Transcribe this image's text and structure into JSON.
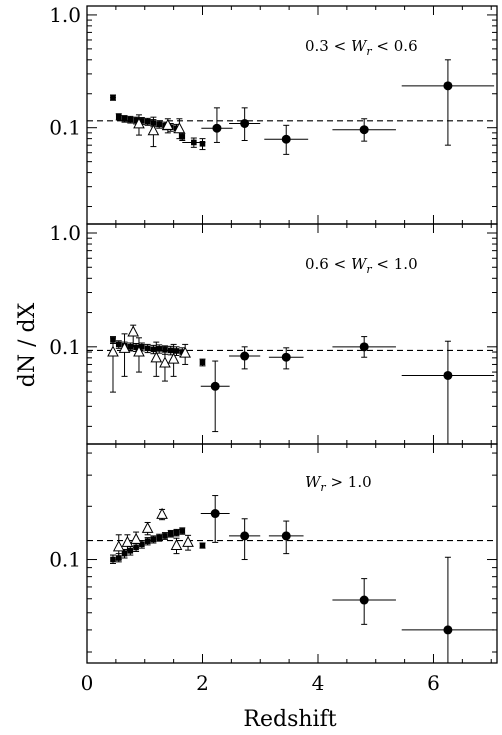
{
  "figure": {
    "ylabel": "dN / dX",
    "xlabel": "Redshift"
  },
  "chart_data": [
    {
      "type": "scatter",
      "annotation": {
        "prefix": "0.3 < ",
        "w": "W",
        "sub": "r",
        "suffix": " < 0.6"
      },
      "xlim": [
        0,
        7.1
      ],
      "ylim": [
        0.014,
        1.2
      ],
      "yscale": "log",
      "yticks": [
        {
          "value": 0.1,
          "label": "0.1"
        },
        {
          "value": 1.0,
          "label": "1.0"
        }
      ],
      "xticks": [
        0,
        2,
        4,
        6
      ],
      "xtick_labels": [],
      "hline": 0.115,
      "series": [
        {
          "marker": "filled-circle",
          "points": [
            {
              "x": 2.25,
              "y": 0.099,
              "xerr": [
                0.27,
                0.27
              ],
              "yerr": [
                0.074,
                0.15
              ]
            },
            {
              "x": 2.73,
              "y": 0.109,
              "xerr": [
                0.27,
                0.27
              ],
              "yerr": [
                0.077,
                0.15
              ]
            },
            {
              "x": 3.45,
              "y": 0.079,
              "xerr": [
                0.38,
                0.38
              ],
              "yerr": [
                0.058,
                0.105
              ]
            },
            {
              "x": 4.8,
              "y": 0.096,
              "xerr": [
                0.55,
                0.55
              ],
              "yerr": [
                0.076,
                0.12
              ]
            },
            {
              "x": 6.25,
              "y": 0.235,
              "xerr": [
                0.8,
                0.8
              ],
              "yerr": [
                0.07,
                0.4
              ]
            }
          ]
        },
        {
          "marker": "filled-square",
          "points": [
            {
              "x": 0.45,
              "y": 0.185,
              "xerr": [
                0.05,
                0.05
              ],
              "yerr": [
                0.175,
                0.195
              ]
            },
            {
              "x": 0.55,
              "y": 0.125,
              "yerr": [
                0.117,
                0.133
              ]
            },
            {
              "x": 0.65,
              "y": 0.12,
              "yerr": [
                0.112,
                0.128
              ]
            },
            {
              "x": 0.75,
              "y": 0.118,
              "yerr": [
                0.11,
                0.126
              ]
            },
            {
              "x": 0.85,
              "y": 0.116,
              "yerr": [
                0.108,
                0.124
              ]
            },
            {
              "x": 0.95,
              "y": 0.115,
              "yerr": [
                0.107,
                0.123
              ]
            },
            {
              "x": 1.05,
              "y": 0.113,
              "yerr": [
                0.105,
                0.121
              ]
            },
            {
              "x": 1.15,
              "y": 0.11,
              "yerr": [
                0.102,
                0.118
              ]
            },
            {
              "x": 1.25,
              "y": 0.107,
              "yerr": [
                0.099,
                0.115
              ]
            },
            {
              "x": 1.35,
              "y": 0.104,
              "yerr": [
                0.096,
                0.112
              ]
            },
            {
              "x": 1.45,
              "y": 0.101,
              "yerr": [
                0.093,
                0.109
              ]
            },
            {
              "x": 1.55,
              "y": 0.099,
              "yerr": [
                0.091,
                0.107
              ]
            },
            {
              "x": 1.65,
              "y": 0.083,
              "yerr": [
                0.077,
                0.089
              ]
            },
            {
              "x": 1.85,
              "y": 0.074,
              "xerr": [
                0.2,
                0.2
              ],
              "yerr": [
                0.067,
                0.081
              ]
            },
            {
              "x": 2.0,
              "y": 0.072,
              "yerr": [
                0.064,
                0.08
              ]
            }
          ]
        },
        {
          "marker": "open-triangle",
          "points": [
            {
              "x": 0.9,
              "y": 0.108,
              "yerr": [
                0.086,
                0.13
              ]
            },
            {
              "x": 1.15,
              "y": 0.094,
              "yerr": [
                0.068,
                0.124
              ]
            },
            {
              "x": 1.4,
              "y": 0.105,
              "yerr": [
                0.09,
                0.12
              ]
            },
            {
              "x": 1.6,
              "y": 0.098,
              "yerr": [
                0.08,
                0.12
              ]
            }
          ]
        }
      ]
    },
    {
      "type": "scatter",
      "annotation": {
        "prefix": "0.6 < ",
        "w": "W",
        "sub": "r",
        "suffix": " < 1.0"
      },
      "xlim": [
        0,
        7.1
      ],
      "ylim": [
        0.014,
        1.2
      ],
      "yscale": "log",
      "yticks": [
        {
          "value": 0.1,
          "label": "0.1"
        },
        {
          "value": 1.0,
          "label": "1.0"
        }
      ],
      "xticks": [
        0,
        2,
        4,
        6
      ],
      "xtick_labels": [],
      "hline": 0.093,
      "series": [
        {
          "marker": "filled-circle",
          "points": [
            {
              "x": 2.22,
              "y": 0.045,
              "xerr": [
                0.25,
                0.25
              ],
              "yerr": [
                0.018,
                0.075
              ]
            },
            {
              "x": 2.73,
              "y": 0.083,
              "xerr": [
                0.27,
                0.27
              ],
              "yerr": [
                0.064,
                0.1
              ]
            },
            {
              "x": 3.45,
              "y": 0.081,
              "xerr": [
                0.3,
                0.3
              ],
              "yerr": [
                0.064,
                0.098
              ]
            },
            {
              "x": 4.8,
              "y": 0.1,
              "xerr": [
                0.55,
                0.55
              ],
              "yerr": [
                0.081,
                0.123
              ]
            },
            {
              "x": 6.25,
              "y": 0.056,
              "xerr": [
                0.8,
                0.8
              ],
              "yerr": [
                0.01,
                0.112
              ]
            }
          ]
        },
        {
          "marker": "filled-square",
          "points": [
            {
              "x": 0.45,
              "y": 0.115,
              "yerr": [
                0.107,
                0.123
              ]
            },
            {
              "x": 0.55,
              "y": 0.105,
              "yerr": [
                0.097,
                0.113
              ]
            },
            {
              "x": 0.65,
              "y": 0.102,
              "yerr": [
                0.094,
                0.11
              ]
            },
            {
              "x": 0.75,
              "y": 0.1,
              "yerr": [
                0.092,
                0.108
              ]
            },
            {
              "x": 0.85,
              "y": 0.099,
              "yerr": [
                0.091,
                0.107
              ]
            },
            {
              "x": 0.95,
              "y": 0.1,
              "yerr": [
                0.092,
                0.108
              ]
            },
            {
              "x": 1.05,
              "y": 0.097,
              "yerr": [
                0.089,
                0.105
              ]
            },
            {
              "x": 1.15,
              "y": 0.095,
              "yerr": [
                0.087,
                0.103
              ]
            },
            {
              "x": 1.25,
              "y": 0.096,
              "yerr": [
                0.088,
                0.104
              ]
            },
            {
              "x": 1.35,
              "y": 0.094,
              "yerr": [
                0.086,
                0.102
              ]
            },
            {
              "x": 1.45,
              "y": 0.093,
              "yerr": [
                0.085,
                0.101
              ]
            },
            {
              "x": 1.55,
              "y": 0.092,
              "yerr": [
                0.084,
                0.1
              ]
            },
            {
              "x": 1.65,
              "y": 0.09,
              "yerr": [
                0.082,
                0.098
              ]
            },
            {
              "x": 2.0,
              "y": 0.073,
              "yerr": [
                0.068,
                0.078
              ]
            }
          ]
        },
        {
          "marker": "open-triangle",
          "points": [
            {
              "x": 0.45,
              "y": 0.09,
              "yerr": [
                0.04,
                0.12
              ]
            },
            {
              "x": 0.65,
              "y": 0.097,
              "yerr": [
                0.055,
                0.13
              ]
            },
            {
              "x": 0.8,
              "y": 0.135,
              "yerr": [
                0.1,
                0.155
              ]
            },
            {
              "x": 0.9,
              "y": 0.09,
              "yerr": [
                0.06,
                0.12
              ]
            },
            {
              "x": 1.2,
              "y": 0.08,
              "yerr": [
                0.055,
                0.11
              ]
            },
            {
              "x": 1.35,
              "y": 0.072,
              "yerr": [
                0.05,
                0.1
              ]
            },
            {
              "x": 1.5,
              "y": 0.078,
              "yerr": [
                0.055,
                0.105
              ]
            },
            {
              "x": 1.7,
              "y": 0.088,
              "yerr": [
                0.07,
                0.105
              ]
            }
          ]
        }
      ]
    },
    {
      "type": "scatter",
      "annotation": {
        "prefix": "",
        "w": "W",
        "sub": "r",
        "suffix": " > 1.0"
      },
      "xlim": [
        0,
        7.1
      ],
      "ylim": [
        0.026,
        0.45
      ],
      "yscale": "log",
      "yticks": [
        {
          "value": 0.1,
          "label": "0.1"
        }
      ],
      "xticks": [
        0,
        2,
        4,
        6
      ],
      "xtick_labels": [
        "0",
        "2",
        "4",
        "6"
      ],
      "hline": 0.128,
      "series": [
        {
          "marker": "filled-circle",
          "points": [
            {
              "x": 2.22,
              "y": 0.182,
              "xerr": [
                0.25,
                0.25
              ],
              "yerr": [
                0.125,
                0.23
              ]
            },
            {
              "x": 2.73,
              "y": 0.136,
              "xerr": [
                0.27,
                0.27
              ],
              "yerr": [
                0.1,
                0.17
              ]
            },
            {
              "x": 3.45,
              "y": 0.136,
              "xerr": [
                0.3,
                0.3
              ],
              "yerr": [
                0.108,
                0.165
              ]
            },
            {
              "x": 4.8,
              "y": 0.059,
              "xerr": [
                0.55,
                0.55
              ],
              "yerr": [
                0.043,
                0.078
              ]
            },
            {
              "x": 6.25,
              "y": 0.04,
              "xerr": [
                0.8,
                0.8
              ],
              "yerr": [
                0.026,
                0.103
              ]
            }
          ]
        },
        {
          "marker": "filled-square",
          "points": [
            {
              "x": 0.45,
              "y": 0.1,
              "yerr": [
                0.095,
                0.106
              ]
            },
            {
              "x": 0.55,
              "y": 0.102,
              "yerr": [
                0.097,
                0.108
              ]
            },
            {
              "x": 0.65,
              "y": 0.108,
              "yerr": [
                0.102,
                0.114
              ]
            },
            {
              "x": 0.75,
              "y": 0.112,
              "yerr": [
                0.106,
                0.118
              ]
            },
            {
              "x": 0.85,
              "y": 0.117,
              "yerr": [
                0.111,
                0.123
              ]
            },
            {
              "x": 0.95,
              "y": 0.122,
              "yerr": [
                0.116,
                0.128
              ]
            },
            {
              "x": 1.05,
              "y": 0.127,
              "yerr": [
                0.121,
                0.133
              ]
            },
            {
              "x": 1.15,
              "y": 0.13,
              "yerr": [
                0.124,
                0.136
              ]
            },
            {
              "x": 1.25,
              "y": 0.133,
              "yerr": [
                0.127,
                0.139
              ]
            },
            {
              "x": 1.35,
              "y": 0.136,
              "yerr": [
                0.13,
                0.142
              ]
            },
            {
              "x": 1.45,
              "y": 0.14,
              "yerr": [
                0.134,
                0.146
              ]
            },
            {
              "x": 1.55,
              "y": 0.142,
              "yerr": [
                0.136,
                0.148
              ]
            },
            {
              "x": 1.65,
              "y": 0.145,
              "yerr": [
                0.139,
                0.151
              ]
            },
            {
              "x": 2.0,
              "y": 0.12,
              "yerr": [
                0.116,
                0.124
              ]
            }
          ]
        },
        {
          "marker": "open-triangle",
          "points": [
            {
              "x": 0.55,
              "y": 0.118,
              "yerr": [
                0.1,
                0.138
              ]
            },
            {
              "x": 0.7,
              "y": 0.125,
              "yerr": [
                0.112,
                0.138
              ]
            },
            {
              "x": 0.85,
              "y": 0.13,
              "yerr": [
                0.117,
                0.143
              ]
            },
            {
              "x": 1.05,
              "y": 0.15,
              "yerr": [
                0.138,
                0.162
              ]
            },
            {
              "x": 1.3,
              "y": 0.18,
              "yerr": [
                0.168,
                0.192
              ]
            },
            {
              "x": 1.55,
              "y": 0.12,
              "yerr": [
                0.108,
                0.132
              ]
            },
            {
              "x": 1.75,
              "y": 0.125,
              "yerr": [
                0.113,
                0.137
              ]
            }
          ]
        }
      ]
    }
  ]
}
